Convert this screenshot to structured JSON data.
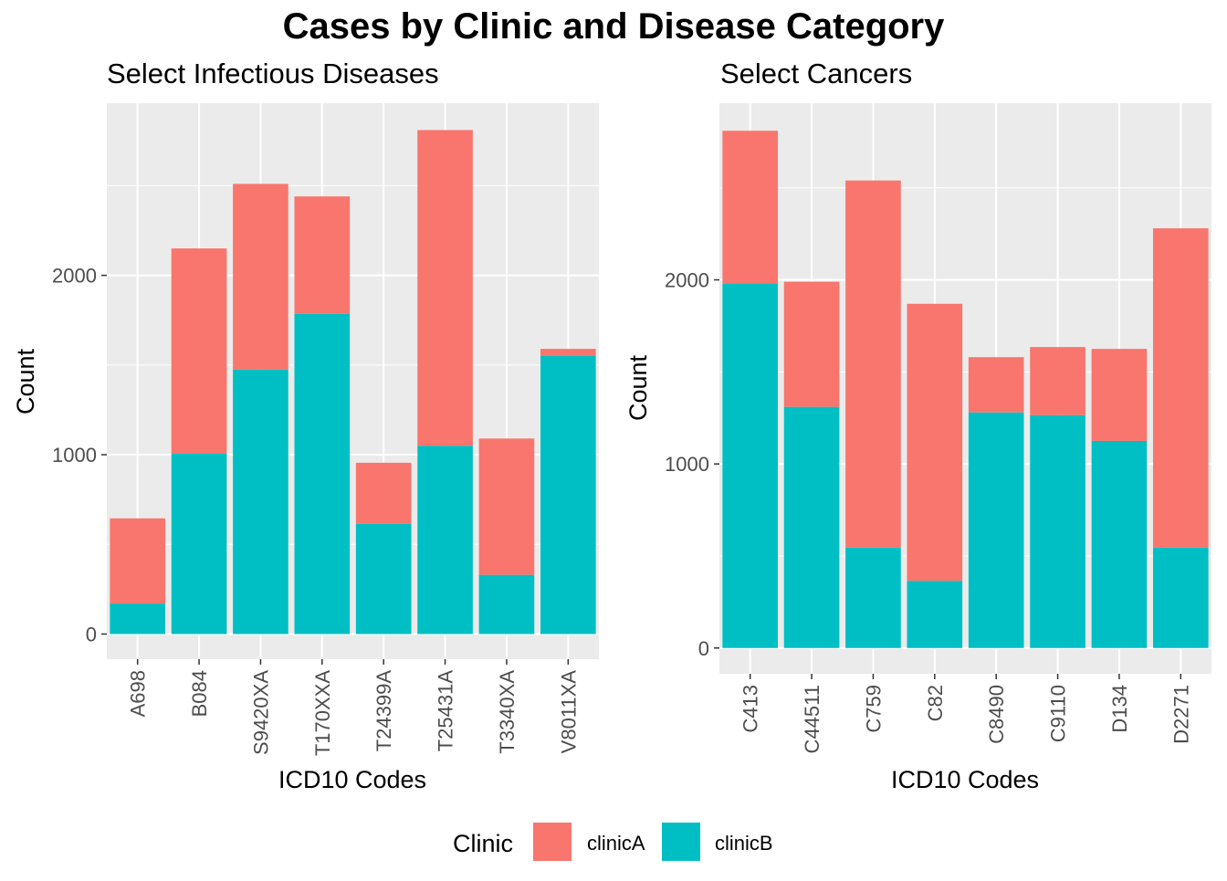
{
  "title": "Cases by Clinic and Disease Category",
  "legend": {
    "title": "Clinic",
    "entries": [
      {
        "name": "clinicA",
        "color": "#F8766D"
      },
      {
        "name": "clinicB",
        "color": "#00BFC4"
      }
    ],
    "position": "bottom"
  },
  "chart_data": [
    {
      "type": "bar",
      "stacked": true,
      "title": "Select Infectious Diseases",
      "xlabel": "ICD10 Codes",
      "ylabel": "Count",
      "categories": [
        "A698",
        "B084",
        "S9420XA",
        "T170XXA",
        "T24399A",
        "T25431A",
        "T3340XA",
        "V8011XA"
      ],
      "series": [
        {
          "name": "clinicB",
          "values": [
            170,
            1005,
            1475,
            1785,
            615,
            1050,
            330,
            1550
          ]
        },
        {
          "name": "clinicA",
          "values": [
            475,
            1145,
            1035,
            655,
            340,
            1760,
            760,
            40
          ]
        }
      ],
      "yticks": [
        0,
        1000,
        2000
      ],
      "ylim": [
        -140,
        2960
      ],
      "grid": true
    },
    {
      "type": "bar",
      "stacked": true,
      "title": "Select Cancers",
      "xlabel": "ICD10 Codes",
      "ylabel": "Count",
      "categories": [
        "C413",
        "C44511",
        "C759",
        "C82",
        "C8490",
        "C9110",
        "D134",
        "D2271"
      ],
      "series": [
        {
          "name": "clinicB",
          "values": [
            1980,
            1310,
            545,
            365,
            1280,
            1265,
            1125,
            545
          ]
        },
        {
          "name": "clinicA",
          "values": [
            830,
            680,
            1995,
            1505,
            300,
            370,
            500,
            1735
          ]
        }
      ],
      "yticks": [
        0,
        1000,
        2000
      ],
      "ylim": [
        -140,
        2960
      ],
      "grid": true
    }
  ]
}
